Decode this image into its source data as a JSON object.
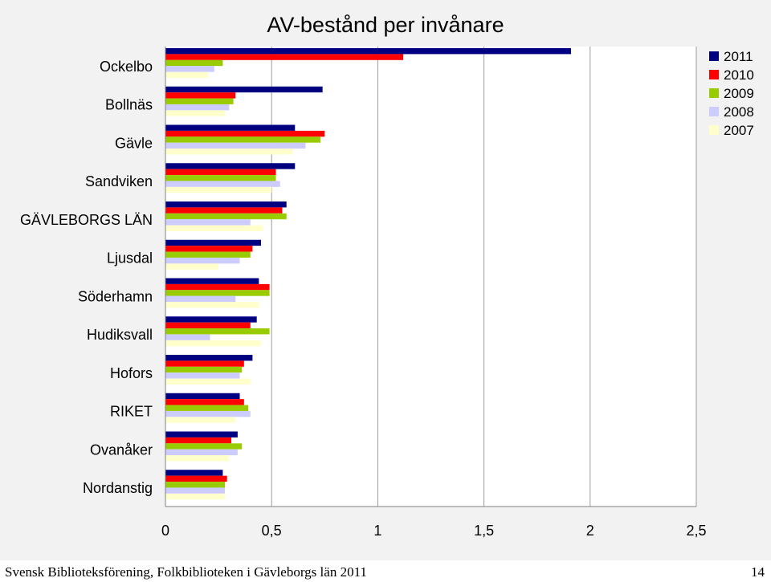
{
  "chart_data": {
    "type": "bar",
    "orientation": "horizontal",
    "title": "AV-bestånd per invånare",
    "categories": [
      "Ockelbo",
      "Bollnäs",
      "Gävle",
      "Sandviken",
      "GÄVLEBORGS LÄN",
      "Ljusdal",
      "Söderhamn",
      "Hudiksvall",
      "Hofors",
      "RIKET",
      "Ovanåker",
      "Nordanstig"
    ],
    "series": [
      {
        "name": "2011",
        "color": "#000080",
        "values": [
          1.91,
          0.74,
          0.61,
          0.61,
          0.57,
          0.45,
          0.44,
          0.43,
          0.41,
          0.35,
          0.34,
          0.27
        ]
      },
      {
        "name": "2010",
        "color": "#ff0000",
        "values": [
          1.12,
          0.33,
          0.75,
          0.52,
          0.55,
          0.41,
          0.49,
          0.4,
          0.37,
          0.37,
          0.31,
          0.29
        ]
      },
      {
        "name": "2009",
        "color": "#99cc00",
        "values": [
          0.27,
          0.32,
          0.73,
          0.52,
          0.57,
          0.4,
          0.49,
          0.49,
          0.36,
          0.39,
          0.36,
          0.28
        ]
      },
      {
        "name": "2008",
        "color": "#ccccff",
        "values": [
          0.23,
          0.3,
          0.66,
          0.54,
          0.4,
          0.35,
          0.33,
          0.21,
          0.35,
          0.4,
          0.34,
          0.28
        ]
      },
      {
        "name": "2007",
        "color": "#ffffcc",
        "values": [
          0.2,
          0.28,
          0.6,
          0.5,
          0.46,
          0.25,
          0.44,
          0.45,
          0.4,
          0.33,
          0.3,
          0.28
        ]
      }
    ],
    "xlim": [
      0,
      2.5
    ],
    "xticks": [
      "0",
      "0,5",
      "1",
      "1,5",
      "2",
      "2,5"
    ],
    "xtick_values": [
      0,
      0.5,
      1,
      1.5,
      2,
      2.5
    ],
    "gridlines": true,
    "legend_position": "top-right"
  },
  "footer": {
    "text": "Svensk Biblioteksförening, Folkbiblioteken i Gävleborgs län 2011",
    "page_number": "14"
  }
}
